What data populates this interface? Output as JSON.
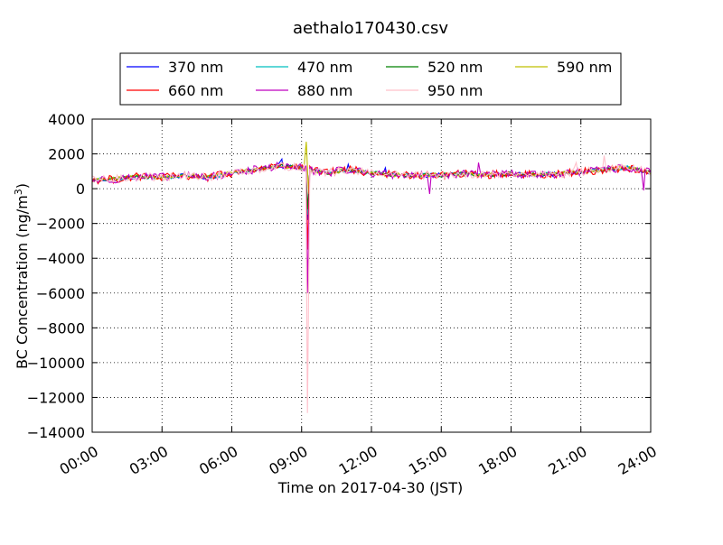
{
  "chart_data": {
    "type": "line",
    "title": "aethalo170430.csv",
    "xlabel": "Time on 2017-04-30 (JST)",
    "ylabel_main": "BC Concentration (ng/m",
    "ylabel_sup": "3",
    "ylabel_end": ")",
    "xlim": [
      "00:00",
      "24:00"
    ],
    "ylim": [
      -14000,
      4000
    ],
    "x_ticks": [
      "00:00",
      "03:00",
      "06:00",
      "09:00",
      "12:00",
      "15:00",
      "18:00",
      "21:00",
      "24:00"
    ],
    "x_tick_hours": [
      0,
      3,
      6,
      9,
      12,
      15,
      18,
      21,
      24
    ],
    "y_ticks": [
      4000,
      2000,
      0,
      -2000,
      -4000,
      -6000,
      -8000,
      -10000,
      -12000,
      -14000
    ],
    "y_tick_labels": [
      "4000",
      "2000",
      "0",
      "−2000",
      "−4000",
      "−6000",
      "−8000",
      "−10000",
      "−12000",
      "−14000"
    ],
    "grid": true,
    "legend_position": "top-center",
    "baseline_hours": [
      0,
      1,
      2,
      3,
      4,
      5,
      6,
      7,
      8,
      9,
      10,
      11,
      12,
      13,
      14,
      15,
      16,
      17,
      18,
      19,
      20,
      21,
      22,
      23,
      24
    ],
    "baseline_values": [
      500,
      550,
      700,
      650,
      750,
      650,
      900,
      1100,
      1300,
      1200,
      900,
      1100,
      900,
      800,
      750,
      800,
      850,
      800,
      850,
      800,
      850,
      950,
      1100,
      1200,
      950
    ],
    "series": [
      {
        "name": "370 nm",
        "color": "#0000ff",
        "events": [
          {
            "hour": 8.0,
            "value": 1400
          },
          {
            "hour": 8.15,
            "value": 1700
          },
          {
            "hour": 8.4,
            "value": 1400
          },
          {
            "hour": 9.25,
            "value": -1800
          },
          {
            "hour": 11.0,
            "value": 1400
          },
          {
            "hour": 12.6,
            "value": 1200
          }
        ]
      },
      {
        "name": "470 nm",
        "color": "#00bfbf",
        "events": [
          {
            "hour": 9.25,
            "value": -1500
          }
        ]
      },
      {
        "name": "520 nm",
        "color": "#008000",
        "events": [
          {
            "hour": 9.25,
            "value": -1200
          }
        ]
      },
      {
        "name": "590 nm",
        "color": "#bfbf00",
        "events": [
          {
            "hour": 9.2,
            "value": 2700
          },
          {
            "hour": 9.3,
            "value": -300
          }
        ]
      },
      {
        "name": "660 nm",
        "color": "#ff0000",
        "events": [
          {
            "hour": 9.25,
            "value": -3500
          }
        ]
      },
      {
        "name": "880 nm",
        "color": "#bf00bf",
        "events": [
          {
            "hour": 9.25,
            "value": -6000
          },
          {
            "hour": 14.5,
            "value": -300
          },
          {
            "hour": 16.6,
            "value": 1500
          },
          {
            "hour": 23.7,
            "value": -100
          }
        ]
      },
      {
        "name": "950 nm",
        "color": "#ffc0cb",
        "events": [
          {
            "hour": 9.25,
            "value": -12900
          },
          {
            "hour": 20.8,
            "value": 1500
          },
          {
            "hour": 22.0,
            "value": 1900
          }
        ]
      }
    ]
  }
}
